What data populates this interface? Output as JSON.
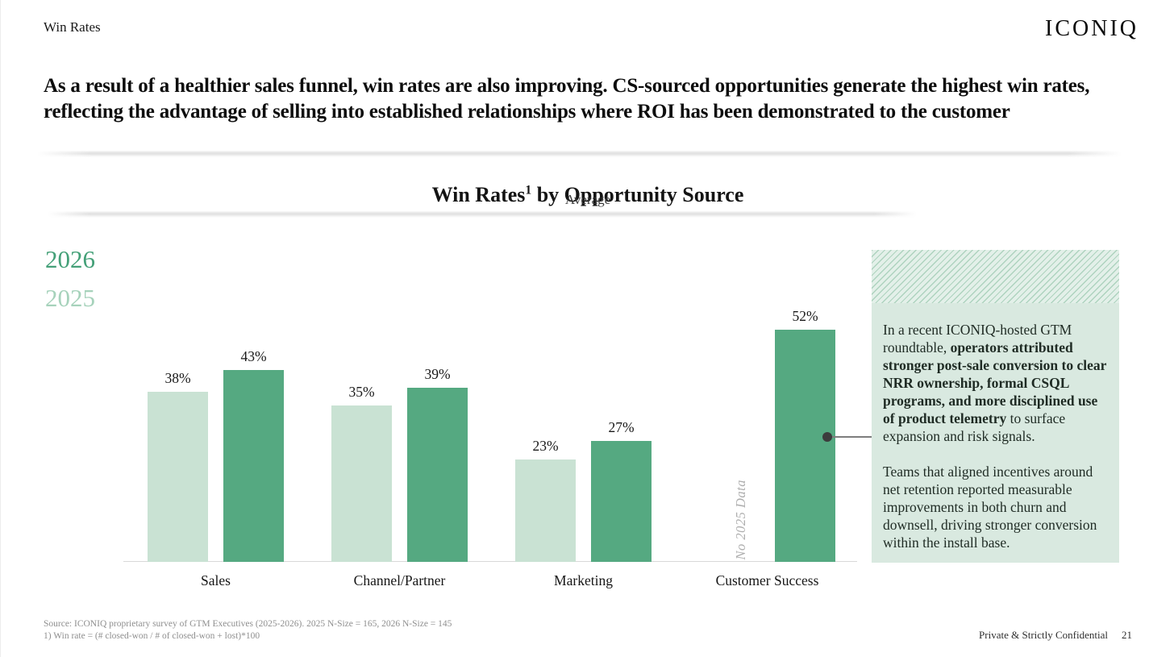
{
  "header": {
    "tag": "Win Rates",
    "logo": "ICONIQ",
    "headline": "As a result of a healthier sales funnel, win rates are also improving. CS-sourced opportunities generate the highest win rates, reflecting the advantage of selling into established relationships where ROI has been demonstrated to the customer"
  },
  "chart_data": {
    "type": "bar",
    "title": "Win Rates¹ by Opportunity Source",
    "title_pre": "Win Rates",
    "title_sup": "1",
    "title_post": " by Opportunity Source",
    "subtitle": "Average",
    "categories": [
      "Sales",
      "Channel/Partner",
      "Marketing",
      "Customer Success"
    ],
    "series": [
      {
        "name": "2025",
        "color": "#c9e2d3",
        "values": [
          38,
          35,
          23,
          null
        ]
      },
      {
        "name": "2026",
        "color": "#55a981",
        "values": [
          43,
          39,
          27,
          52
        ]
      }
    ],
    "value_suffix": "%",
    "missing_data_note": "No 2025 Data",
    "ylim": [
      0,
      57
    ],
    "grid": false,
    "legend_position": "top-left"
  },
  "legend": {
    "items": [
      {
        "label": "2026",
        "color": "#44a078"
      },
      {
        "label": "2025",
        "color": "#a6d2bb"
      }
    ]
  },
  "callout": {
    "bg_color": "#d9e9e0",
    "paragraph1": [
      {
        "text": "In a recent ICONIQ-hosted GTM roundtable, ",
        "bold": false
      },
      {
        "text": "operators attributed stronger post-sale conversion to clear NRR ownership, formal CSQL programs, and more disciplined use of product telemetry",
        "bold": true
      },
      {
        "text": " to surface expansion and risk signals.",
        "bold": false
      }
    ],
    "paragraph2": [
      {
        "text": "Teams that aligned incentives around net retention reported measurable improvements in both churn and downsell, driving stronger conversion within the install base.",
        "bold": false
      }
    ]
  },
  "footer": {
    "source_line": "Source: ICONIQ proprietary survey of GTM Executives (2025-2026). 2025 N-Size = 165, 2026 N-Size = 145",
    "note_line": "1) Win rate = (# closed-won / # of closed-won + lost)*100",
    "confidential": "Private & Strictly Confidential",
    "page_number": "21"
  }
}
